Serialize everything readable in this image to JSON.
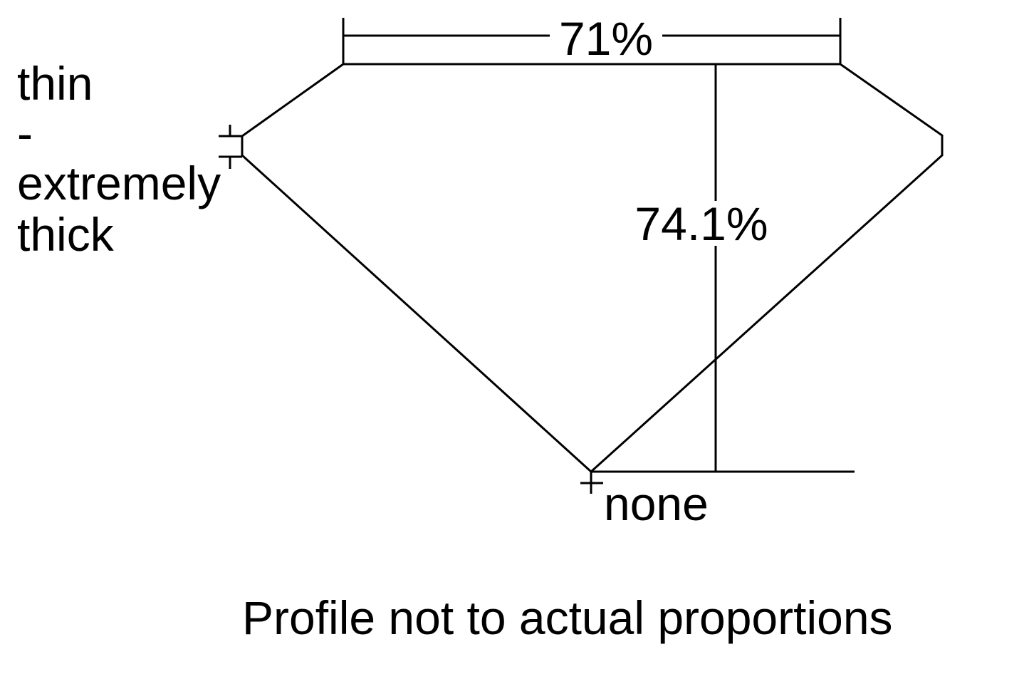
{
  "diagram": {
    "table_label": "71%",
    "depth_label": "74.1%",
    "girdle_label": [
      "thin",
      "-",
      "extremely",
      "thick"
    ],
    "culet_label": "none",
    "footnote": "Profile not to actual proportions"
  },
  "colors": {
    "line": "#000000",
    "background": "#ffffff"
  }
}
